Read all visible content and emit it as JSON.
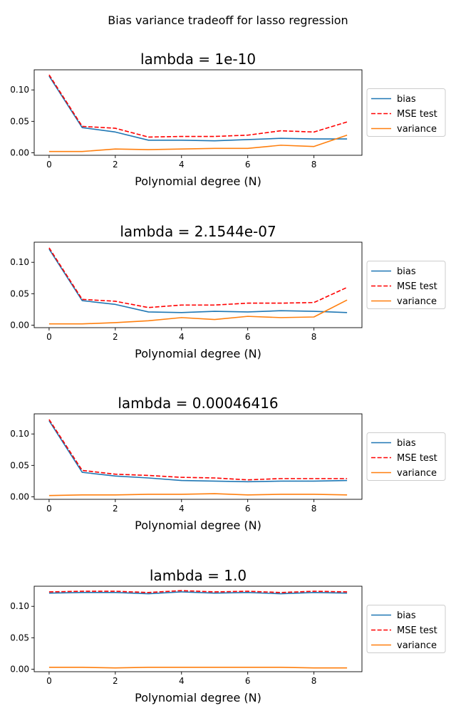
{
  "figure": {
    "suptitle": "Bias variance tradeoff for lasso regression"
  },
  "colors": {
    "bias": "#1f77b4",
    "mse": "#ff0000",
    "variance": "#ff7f0e"
  },
  "chart_data": [
    {
      "type": "line",
      "title": "lambda = 1e-10",
      "xlabel": "Polynomial degree (N)",
      "ylabel": "",
      "x": [
        0,
        1,
        2,
        3,
        4,
        5,
        6,
        7,
        8,
        9
      ],
      "xlim": [
        -0.45,
        9.45
      ],
      "ylim": [
        -0.004,
        0.132
      ],
      "xticks": [
        0,
        2,
        4,
        6,
        8
      ],
      "xtick_labels": [
        "0",
        "2",
        "4",
        "6",
        "8"
      ],
      "yticks": [
        0.0,
        0.05,
        0.1
      ],
      "ytick_labels": [
        "0.00",
        "0.05",
        "0.10"
      ],
      "legend": "right-outside",
      "series": [
        {
          "name": "bias",
          "style": "solid",
          "values": [
            0.122,
            0.04,
            0.033,
            0.02,
            0.02,
            0.019,
            0.021,
            0.023,
            0.022,
            0.022
          ]
        },
        {
          "name": "MSE test",
          "style": "dashed",
          "values": [
            0.124,
            0.042,
            0.039,
            0.025,
            0.026,
            0.026,
            0.028,
            0.035,
            0.033,
            0.049
          ]
        },
        {
          "name": "variance",
          "style": "solid",
          "values": [
            0.002,
            0.002,
            0.006,
            0.005,
            0.006,
            0.007,
            0.007,
            0.012,
            0.01,
            0.028
          ]
        }
      ]
    },
    {
      "type": "line",
      "title": "lambda = 2.1544e-07",
      "xlabel": "Polynomial degree (N)",
      "ylabel": "",
      "x": [
        0,
        1,
        2,
        3,
        4,
        5,
        6,
        7,
        8,
        9
      ],
      "xlim": [
        -0.45,
        9.45
      ],
      "ylim": [
        -0.004,
        0.132
      ],
      "xticks": [
        0,
        2,
        4,
        6,
        8
      ],
      "xtick_labels": [
        "0",
        "2",
        "4",
        "6",
        "8"
      ],
      "yticks": [
        0.0,
        0.05,
        0.1
      ],
      "ytick_labels": [
        "0.00",
        "0.05",
        "0.10"
      ],
      "legend": "right-outside",
      "series": [
        {
          "name": "bias",
          "style": "solid",
          "values": [
            0.121,
            0.039,
            0.033,
            0.021,
            0.02,
            0.022,
            0.021,
            0.023,
            0.022,
            0.02
          ]
        },
        {
          "name": "MSE test",
          "style": "dashed",
          "values": [
            0.123,
            0.041,
            0.038,
            0.028,
            0.032,
            0.032,
            0.035,
            0.035,
            0.036,
            0.06
          ]
        },
        {
          "name": "variance",
          "style": "solid",
          "values": [
            0.002,
            0.002,
            0.004,
            0.007,
            0.012,
            0.009,
            0.014,
            0.012,
            0.013,
            0.04
          ]
        }
      ]
    },
    {
      "type": "line",
      "title": "lambda = 0.00046416",
      "xlabel": "Polynomial degree (N)",
      "ylabel": "",
      "x": [
        0,
        1,
        2,
        3,
        4,
        5,
        6,
        7,
        8,
        9
      ],
      "xlim": [
        -0.45,
        9.45
      ],
      "ylim": [
        -0.004,
        0.132
      ],
      "xticks": [
        0,
        2,
        4,
        6,
        8
      ],
      "xtick_labels": [
        "0",
        "2",
        "4",
        "6",
        "8"
      ],
      "yticks": [
        0.0,
        0.05,
        0.1
      ],
      "ytick_labels": [
        "0.00",
        "0.05",
        "0.10"
      ],
      "legend": "right-outside",
      "series": [
        {
          "name": "bias",
          "style": "solid",
          "values": [
            0.121,
            0.039,
            0.033,
            0.03,
            0.026,
            0.025,
            0.024,
            0.025,
            0.025,
            0.026
          ]
        },
        {
          "name": "MSE test",
          "style": "dashed",
          "values": [
            0.123,
            0.042,
            0.036,
            0.034,
            0.031,
            0.03,
            0.027,
            0.029,
            0.029,
            0.029
          ]
        },
        {
          "name": "variance",
          "style": "solid",
          "values": [
            0.002,
            0.003,
            0.003,
            0.004,
            0.004,
            0.005,
            0.003,
            0.004,
            0.004,
            0.003
          ]
        }
      ]
    },
    {
      "type": "line",
      "title": "lambda = 1.0",
      "xlabel": "Polynomial degree (N)",
      "ylabel": "",
      "x": [
        0,
        1,
        2,
        3,
        4,
        5,
        6,
        7,
        8,
        9
      ],
      "xlim": [
        -0.45,
        9.45
      ],
      "ylim": [
        -0.004,
        0.132
      ],
      "xticks": [
        0,
        2,
        4,
        6,
        8
      ],
      "xtick_labels": [
        "0",
        "2",
        "4",
        "6",
        "8"
      ],
      "yticks": [
        0.0,
        0.05,
        0.1
      ],
      "ytick_labels": [
        "0.00",
        "0.05",
        "0.10"
      ],
      "legend": "right-outside",
      "series": [
        {
          "name": "bias",
          "style": "solid",
          "values": [
            0.121,
            0.122,
            0.122,
            0.12,
            0.123,
            0.121,
            0.122,
            0.12,
            0.122,
            0.121
          ]
        },
        {
          "name": "MSE test",
          "style": "dashed",
          "values": [
            0.123,
            0.124,
            0.124,
            0.122,
            0.125,
            0.123,
            0.124,
            0.122,
            0.124,
            0.123
          ]
        },
        {
          "name": "variance",
          "style": "solid",
          "values": [
            0.003,
            0.003,
            0.002,
            0.003,
            0.003,
            0.003,
            0.003,
            0.003,
            0.002,
            0.002
          ]
        }
      ]
    }
  ]
}
